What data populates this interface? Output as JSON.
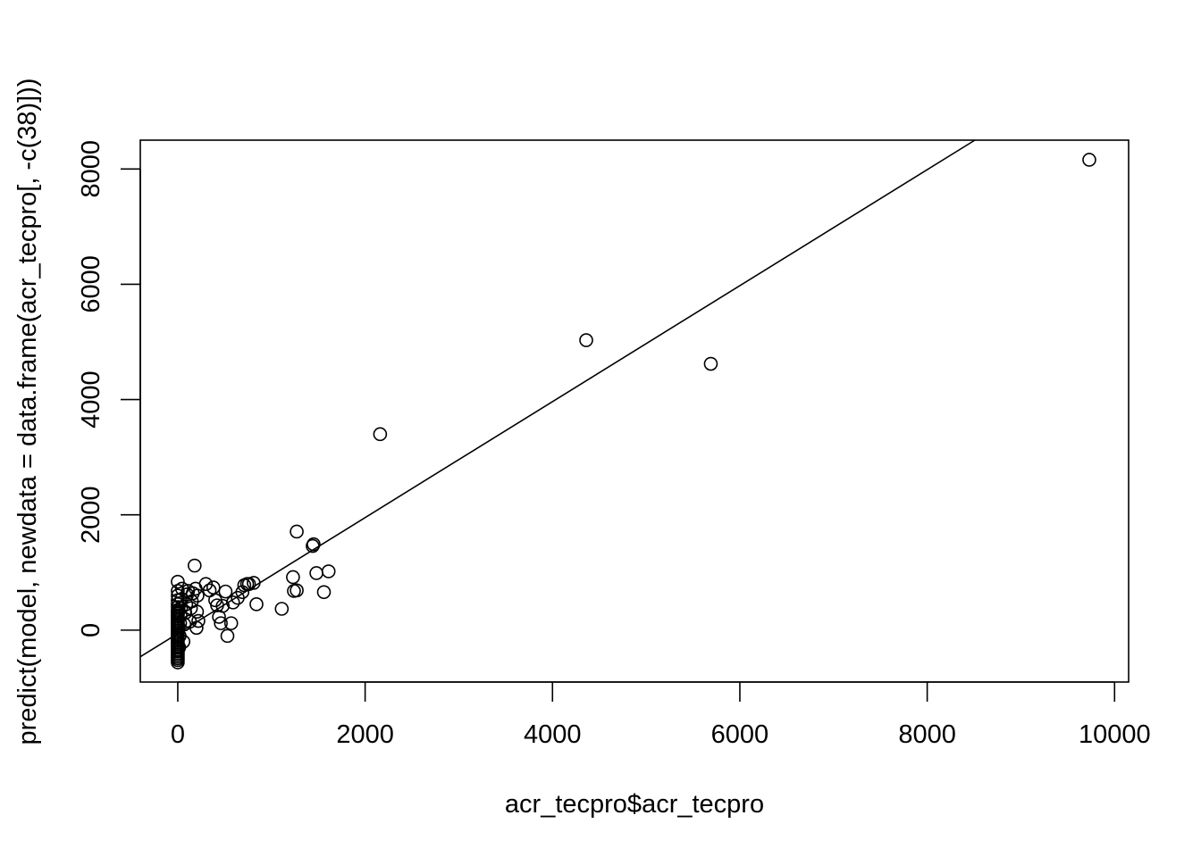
{
  "chart_data": {
    "type": "scatter",
    "xlabel": "acr_tecpro$acr_tecpro",
    "ylabel": "predict(model, newdata = data.frame(acr_tecpro[, -c(38)]))",
    "xlim": [
      -400,
      10150
    ],
    "ylim": [
      -900,
      8500
    ],
    "xticks": [
      0,
      2000,
      4000,
      6000,
      8000,
      10000
    ],
    "yticks": [
      0,
      2000,
      4000,
      6000,
      8000
    ],
    "reference_line": {
      "intercept": -60,
      "slope": 1.006
    },
    "series": [
      {
        "values": [
          [
            0,
            -560
          ],
          [
            0,
            -520
          ],
          [
            0,
            -490
          ],
          [
            0,
            -460
          ],
          [
            0,
            -430
          ],
          [
            0,
            -400
          ],
          [
            0,
            -370
          ],
          [
            0,
            -340
          ],
          [
            0,
            -310
          ],
          [
            0,
            -280
          ],
          [
            0,
            -250
          ],
          [
            0,
            -220
          ],
          [
            0,
            -190
          ],
          [
            0,
            -160
          ],
          [
            0,
            -130
          ],
          [
            0,
            -100
          ],
          [
            0,
            -70
          ],
          [
            0,
            -40
          ],
          [
            0,
            -10
          ],
          [
            0,
            20
          ],
          [
            0,
            50
          ],
          [
            0,
            80
          ],
          [
            0,
            110
          ],
          [
            0,
            140
          ],
          [
            0,
            170
          ],
          [
            0,
            200
          ],
          [
            0,
            230
          ],
          [
            0,
            260
          ],
          [
            0,
            290
          ],
          [
            0,
            320
          ],
          [
            0,
            350
          ],
          [
            0,
            400
          ],
          [
            0,
            450
          ],
          [
            0,
            520
          ],
          [
            0,
            600
          ],
          [
            0,
            680
          ],
          [
            0,
            840
          ],
          [
            15,
            -300
          ],
          [
            20,
            -100
          ],
          [
            25,
            120
          ],
          [
            30,
            250
          ],
          [
            35,
            380
          ],
          [
            40,
            540
          ],
          [
            45,
            720
          ],
          [
            60,
            -200
          ],
          [
            70,
            100
          ],
          [
            80,
            300
          ],
          [
            90,
            450
          ],
          [
            100,
            620
          ],
          [
            110,
            680
          ],
          [
            130,
            150
          ],
          [
            140,
            380
          ],
          [
            150,
            500
          ],
          [
            160,
            640
          ],
          [
            180,
            1120
          ],
          [
            190,
            720
          ],
          [
            200,
            40
          ],
          [
            205,
            320
          ],
          [
            210,
            600
          ],
          [
            220,
            160
          ],
          [
            300,
            800
          ],
          [
            340,
            690
          ],
          [
            380,
            740
          ],
          [
            400,
            520
          ],
          [
            420,
            430
          ],
          [
            440,
            230
          ],
          [
            460,
            120
          ],
          [
            480,
            420
          ],
          [
            510,
            670
          ],
          [
            530,
            -100
          ],
          [
            570,
            120
          ],
          [
            590,
            480
          ],
          [
            640,
            560
          ],
          [
            690,
            660
          ],
          [
            710,
            780
          ],
          [
            740,
            800
          ],
          [
            760,
            800
          ],
          [
            810,
            820
          ],
          [
            840,
            450
          ],
          [
            1110,
            370
          ],
          [
            1230,
            920
          ],
          [
            1240,
            680
          ],
          [
            1270,
            690
          ],
          [
            1270,
            1710
          ],
          [
            1440,
            1460
          ],
          [
            1450,
            1490
          ],
          [
            1480,
            990
          ],
          [
            1560,
            660
          ],
          [
            1610,
            1020
          ],
          [
            2160,
            3400
          ],
          [
            4360,
            5030
          ],
          [
            5690,
            4620
          ],
          [
            9730,
            8160
          ]
        ]
      }
    ]
  }
}
